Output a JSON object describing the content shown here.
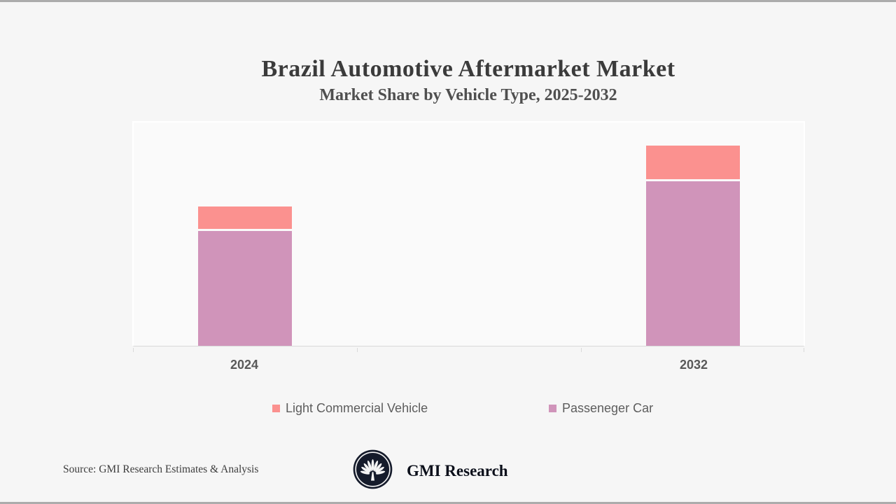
{
  "page": {
    "background": "#f6f6f6",
    "edge_border_color": "#acacac"
  },
  "header": {
    "title": "Brazil Automotive Aftermarket Market",
    "subtitle": "Market Share by Vehicle Type, 2025-2032"
  },
  "chart_data": {
    "type": "bar",
    "stacked": true,
    "categories": [
      "2024",
      "2032"
    ],
    "series": [
      {
        "name": "Light Commercial Vehicle",
        "color": "#FB918F",
        "values": [
          10,
          15
        ]
      },
      {
        "name": "Passeneger Car",
        "color": "#D094BA",
        "values": [
          51,
          73
        ]
      }
    ],
    "title": "Brazil Automotive Aftermarket Market",
    "subtitle": "Market Share by Vehicle Type, 2025-2032",
    "xlabel": "",
    "ylabel": "",
    "ylim": [
      0,
      100
    ],
    "y_axis_visible": false,
    "value_labels_visible": false,
    "grid": false,
    "legend_position": "bottom",
    "segment_gap_color": "#ffffff",
    "axis_line_color": "#d9d9d9"
  },
  "footer": {
    "source": "Source: GMI Research Estimates & Analysis",
    "brand": "GMI Research"
  }
}
